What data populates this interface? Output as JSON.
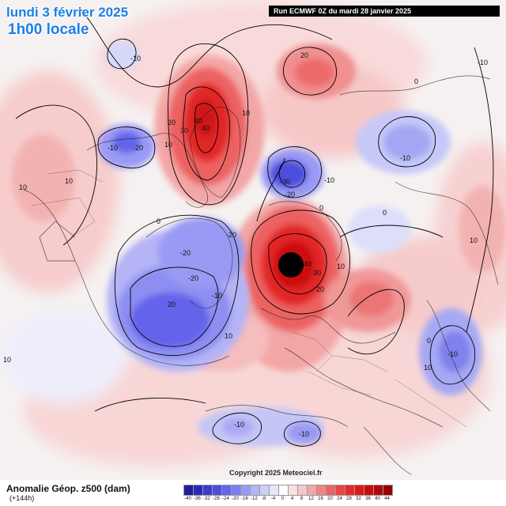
{
  "header": {
    "date_label": "lundi 3 février 2025",
    "time_label": "1h00 locale",
    "run_label": "Run ECMWF 0Z du mardi 28 janvier 2025"
  },
  "footer": {
    "variable_title": "Anomalie Géop. z500 (dam)",
    "lead_time": "(+144h)",
    "copyright": "Copyright 2025 Meteociel.fr"
  },
  "legend": {
    "unit": "dam",
    "ticks": [
      "-40",
      "-36",
      "-32",
      "-28",
      "-24",
      "-20",
      "-16",
      "-12",
      "-8",
      "-4",
      "0",
      "4",
      "8",
      "12",
      "16",
      "20",
      "24",
      "28",
      "32",
      "36",
      "40",
      "44"
    ],
    "colors": [
      "#1e1e96",
      "#2a2ab8",
      "#3c3ccc",
      "#4e4ede",
      "#6464ec",
      "#7e7ef0",
      "#9a9af4",
      "#b4b4f6",
      "#cccff8",
      "#e4e6fa",
      "#ffffff",
      "#fbe2e2",
      "#f7c6c6",
      "#f3a6a6",
      "#ef8484",
      "#ec6262",
      "#ea4444",
      "#e62a2a",
      "#dc1818",
      "#c80c0c",
      "#b40606",
      "#980000"
    ]
  },
  "map": {
    "contour_labels": [
      "-10",
      "20",
      "-10",
      "-20",
      "10",
      "30",
      "40",
      "40",
      "20",
      "10",
      "-30",
      "-20",
      "-10",
      "-10",
      "20",
      "10",
      "0",
      "-20",
      "-20",
      "-20",
      "-10",
      "10",
      "40",
      "30",
      "10",
      "20",
      "10",
      "-10",
      "0",
      "-10",
      "-10",
      "10",
      "10",
      "-10",
      "0",
      "10",
      "0",
      "0"
    ],
    "anomaly_centers": [
      {
        "name": "greenland-positive",
        "sign": "positive"
      },
      {
        "name": "scandinavia-positive",
        "sign": "positive"
      },
      {
        "name": "canada-negative",
        "sign": "negative"
      },
      {
        "name": "siberia-negative",
        "sign": "negative"
      },
      {
        "name": "alaska-negative",
        "sign": "negative"
      },
      {
        "name": "asia-negative",
        "sign": "negative"
      },
      {
        "name": "mediterranean-negative",
        "sign": "negative"
      }
    ]
  }
}
